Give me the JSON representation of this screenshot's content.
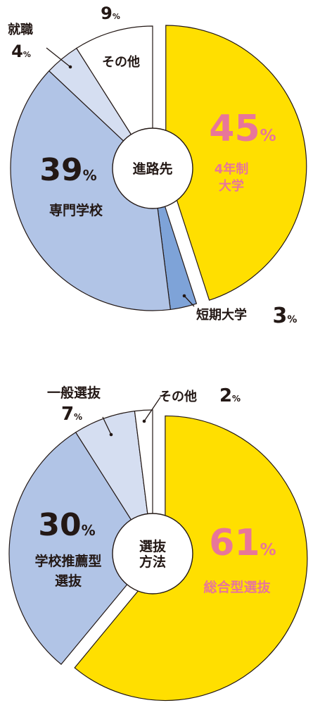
{
  "charts": [
    {
      "id": "c1",
      "center_label": [
        "進路先"
      ],
      "slices": [
        {
          "name": [
            "4年制",
            "大学"
          ],
          "value": 45,
          "pct_text": "45",
          "color": "#ffdf00",
          "label_color": "#e8769a"
        },
        {
          "name": [
            "短期大学"
          ],
          "value": 3,
          "pct_text": "3",
          "color": "#7ea3d8",
          "label_color": "#231815"
        },
        {
          "name": [
            "専門学校"
          ],
          "value": 39,
          "pct_text": "39",
          "color": "#b1c4e6",
          "label_color": "#231815"
        },
        {
          "name": [
            "就職"
          ],
          "value": 4,
          "pct_text": "4",
          "color": "#d5def1",
          "label_color": "#231815"
        },
        {
          "name": [
            "その他"
          ],
          "value": 9,
          "pct_text": "9",
          "color": "#ffffff",
          "label_color": "#231815"
        }
      ]
    },
    {
      "id": "c2",
      "center_label": [
        "選抜",
        "方法"
      ],
      "slices": [
        {
          "name": [
            "総合型選抜"
          ],
          "value": 61,
          "pct_text": "61",
          "color": "#ffdf00",
          "label_color": "#e8769a"
        },
        {
          "name": [
            "学校推薦型",
            "選抜"
          ],
          "value": 30,
          "pct_text": "30",
          "color": "#b1c4e6",
          "label_color": "#231815"
        },
        {
          "name": [
            "一般選抜"
          ],
          "value": 7,
          "pct_text": "7",
          "color": "#d5def1",
          "label_color": "#231815"
        },
        {
          "name": [
            "その他"
          ],
          "value": 2,
          "pct_text": "2",
          "color": "#ffffff",
          "label_color": "#231815"
        }
      ]
    }
  ],
  "percent_sign": "%",
  "chart_data": [
    {
      "type": "pie",
      "center_label": "進路先",
      "categories": [
        "4年制大学",
        "短期大学",
        "専門学校",
        "就職",
        "その他"
      ],
      "values": [
        45,
        3,
        39,
        4,
        9
      ]
    },
    {
      "type": "pie",
      "center_label": "選抜方法",
      "categories": [
        "総合型選抜",
        "学校推薦型選抜",
        "一般選抜",
        "その他"
      ],
      "values": [
        61,
        30,
        7,
        2
      ]
    }
  ],
  "colors": {
    "yellow": "#ffdf00",
    "pink": "#e8769a",
    "blue_dark": "#7ea3d8",
    "blue": "#b1c4e6",
    "blue_light": "#d5def1",
    "outline": "#231815"
  }
}
